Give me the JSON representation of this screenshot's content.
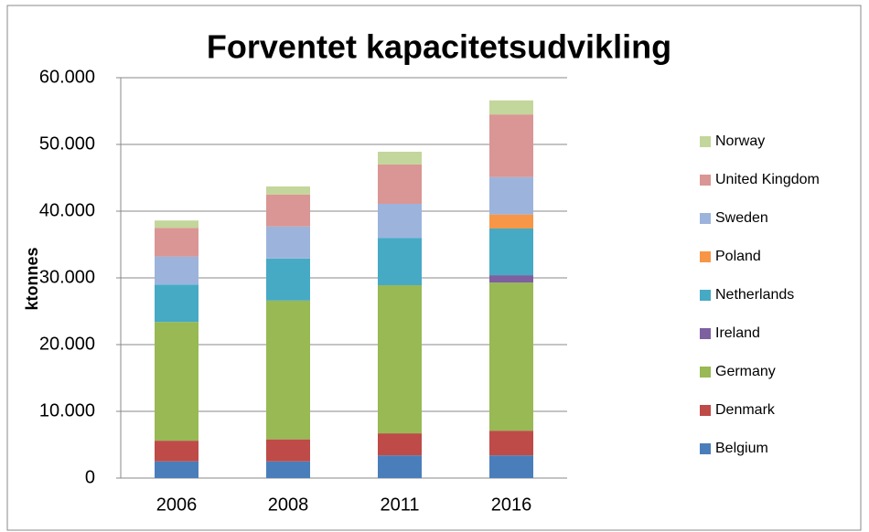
{
  "chart_data": {
    "type": "stacked_bar",
    "title": "Forventet kapacitetsudvikling",
    "y_label": "ktonnes",
    "categories": [
      "2006",
      "2008",
      "2011",
      "2016"
    ],
    "series": [
      {
        "name": "Belgium",
        "color": "#4a7ebb",
        "values": [
          2500,
          2500,
          3400,
          3400
        ]
      },
      {
        "name": "Denmark",
        "color": "#be4b48",
        "values": [
          3100,
          3300,
          3300,
          3700
        ]
      },
      {
        "name": "Germany",
        "color": "#98b954",
        "values": [
          17800,
          20800,
          22200,
          22200
        ]
      },
      {
        "name": "Ireland",
        "color": "#7d60a0",
        "values": [
          0,
          0,
          0,
          1100
        ]
      },
      {
        "name": "Netherlands",
        "color": "#46aac5",
        "values": [
          5600,
          6300,
          7100,
          7000
        ]
      },
      {
        "name": "Poland",
        "color": "#f79646",
        "values": [
          0,
          0,
          0,
          2100
        ]
      },
      {
        "name": "Sweden",
        "color": "#9cb4dc",
        "values": [
          4200,
          4800,
          5100,
          5600
        ]
      },
      {
        "name": "United Kingdom",
        "color": "#d99694",
        "values": [
          4300,
          4800,
          5900,
          9400
        ]
      },
      {
        "name": "Norway",
        "color": "#c3d69b",
        "values": [
          1100,
          1200,
          1900,
          2100
        ]
      }
    ],
    "ylim": [
      0,
      60000
    ],
    "yticks": [
      0,
      {
        "value": 10000,
        "label": "10.000"
      },
      {
        "value": 20000,
        "label": "20.000"
      },
      {
        "value": 30000,
        "label": "30.000"
      },
      {
        "value": 40000,
        "label": "40.000"
      },
      {
        "value": 50000,
        "label": "50.000"
      },
      {
        "value": 60000,
        "label": "60.000"
      }
    ],
    "grid": true,
    "legend": "right"
  }
}
